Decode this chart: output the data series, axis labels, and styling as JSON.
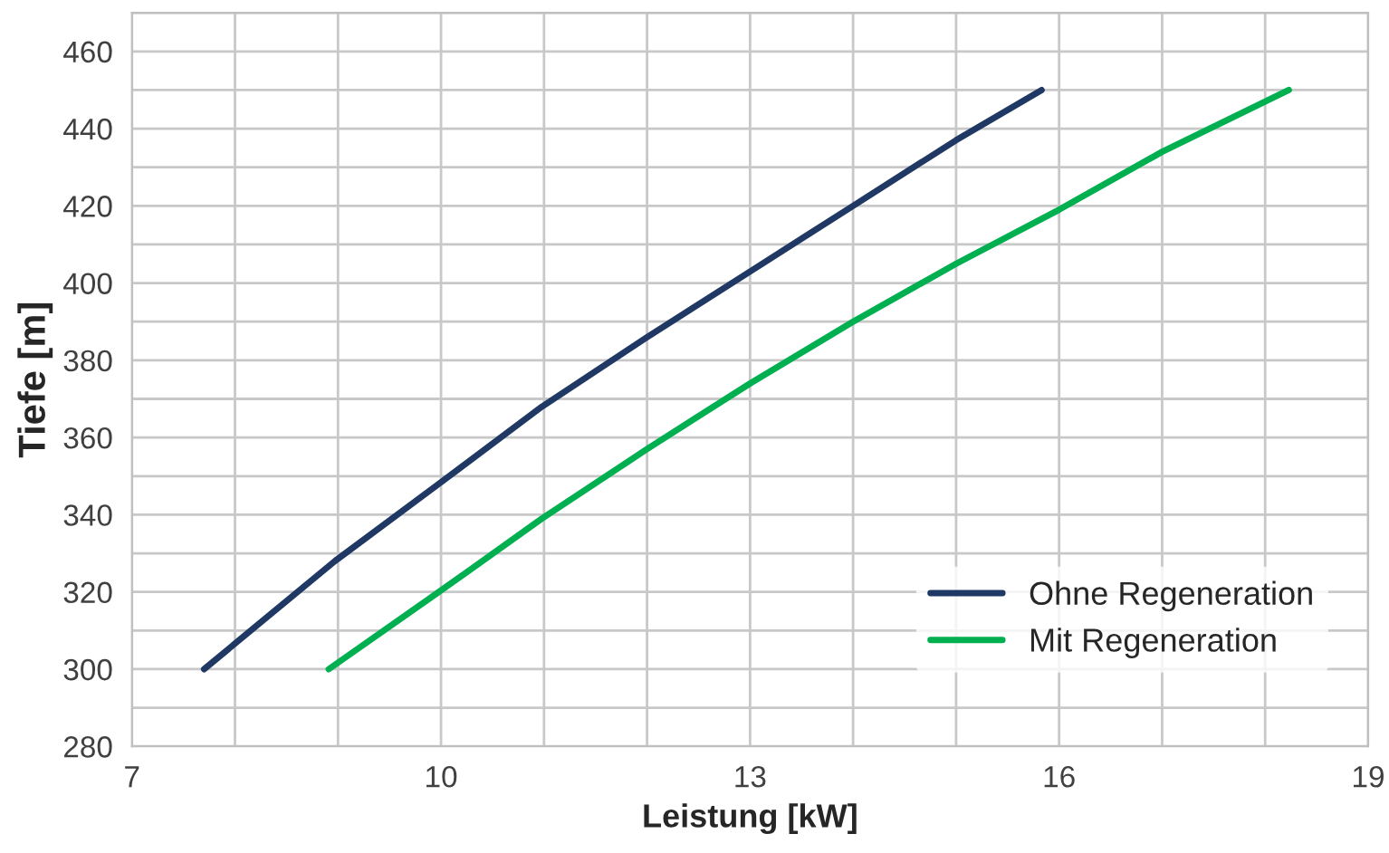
{
  "chart_data": {
    "type": "line",
    "xlabel": "Leistung [kW]",
    "ylabel": "Tiefe [m]",
    "series": [
      {
        "name": "Ohne Regeneration",
        "color": "#1f3864",
        "x": [
          7.7,
          8.97,
          9.98,
          10.98,
          12.0,
          13.0,
          14.0,
          15.0,
          15.83
        ],
        "values": [
          300,
          328,
          348,
          368,
          386,
          403,
          420,
          437,
          450
        ]
      },
      {
        "name": "Mit Regeneration",
        "color": "#00b050",
        "x": [
          8.91,
          9.98,
          10.98,
          12.0,
          13.0,
          14.0,
          15.0,
          16.0,
          17.0,
          18.23
        ],
        "values": [
          300,
          320,
          339,
          357,
          374,
          390,
          405,
          419,
          434,
          450
        ]
      }
    ],
    "xlim": [
      7,
      19
    ],
    "xticks": [
      7,
      {
        "value": 8,
        "label": null
      },
      {
        "value": 9,
        "label": null
      },
      10,
      {
        "value": 11,
        "label": null
      },
      {
        "value": 12,
        "label": null
      },
      13,
      {
        "value": 14,
        "label": null
      },
      {
        "value": 15,
        "label": null
      },
      16,
      {
        "value": 17,
        "label": null
      },
      {
        "value": 18,
        "label": null
      },
      19
    ],
    "ylim": [
      280,
      470
    ],
    "yticks": [
      280,
      {
        "value": 290,
        "label": null
      },
      300,
      {
        "value": 310,
        "label": null
      },
      320,
      {
        "value": 330,
        "label": null
      },
      340,
      {
        "value": 350,
        "label": null
      },
      360,
      {
        "value": 370,
        "label": null
      },
      380,
      {
        "value": 390,
        "label": null
      },
      400,
      {
        "value": 410,
        "label": null
      },
      420,
      {
        "value": 430,
        "label": null
      },
      440,
      {
        "value": 450,
        "label": null
      },
      460,
      {
        "value": 470,
        "label": null
      }
    ],
    "grid": true,
    "legend": "bottom right",
    "marker": "none",
    "line_style": "solid"
  }
}
